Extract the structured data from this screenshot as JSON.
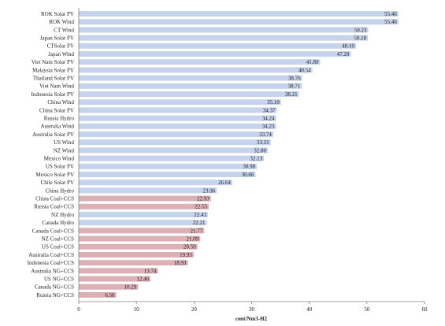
{
  "chart_data": {
    "type": "bar",
    "orientation": "horizontal",
    "title": "",
    "xlabel": "cent/Nm3-H2",
    "ylabel": "",
    "xlim": [
      0,
      60
    ],
    "xticks": [
      0,
      10,
      20,
      30,
      40,
      50,
      60
    ],
    "grid": false,
    "legend": "none",
    "colors": {
      "renewable": "#c5d3ec",
      "fossil": "#dbb1b6",
      "axis": "#808080"
    },
    "categories": [
      "ROK Solar PV",
      "ROK Wind",
      "CT Wind",
      "Japan Solar PV",
      "CTSolar PV",
      "Japan Wind",
      "Viet Nam Solar PV",
      "Malaysia Solar PV",
      "Thailand Solar PV",
      "Viet Nam Wind",
      "Indonesia Solar PV",
      "China Wind",
      "China Solar PV",
      "Russia Hydro",
      "Australia Wind",
      "Australia Solar PV",
      "US Wind",
      "NZ Wind",
      "Mexico Wind",
      "US Solar PV",
      "Mexico Solar PV",
      "Chile Solar PV",
      "China Hydro",
      "China Coal+CCS",
      "Russia Coal+CCS",
      "NZ Hydro",
      "Canada Hydro",
      "Canada Coal+CCS",
      "NZ Coal+CCS",
      "US Coal+CCS",
      "Australia Coal+CCS",
      "Indonesia Coal+CCS",
      "Australia NG+CCS",
      "US NG+CCS",
      "Canada NG+CCS",
      "Russia NG+CCS"
    ],
    "values": [
      55.46,
      55.46,
      50.23,
      50.18,
      48.1,
      47.2,
      41.89,
      40.54,
      38.76,
      38.71,
      38.21,
      35.1,
      34.37,
      34.24,
      34.23,
      33.74,
      33.31,
      32.8,
      32.13,
      30.9,
      30.66,
      26.64,
      23.96,
      22.93,
      22.55,
      22.41,
      22.21,
      21.77,
      21.09,
      20.59,
      19.93,
      18.93,
      13.74,
      12.46,
      10.29,
      6.5
    ],
    "value_labels": [
      "55.46",
      "55.46",
      "50.23",
      "50.18",
      "48.10",
      "47.20",
      "41.89",
      "40.54",
      "38.76",
      "38.71",
      "38.21",
      "35.10",
      "34.37",
      "34.24",
      "34.23",
      "33.74",
      "33.31",
      "32.80",
      "32.13",
      "30.90",
      "30.66",
      "26.64",
      "23.96",
      "22.93",
      "22.55",
      "22.41",
      "22.21",
      "21.77",
      "21.09",
      "20.59",
      "19.93",
      "18.93",
      "13.74",
      "12.46",
      "10.29",
      "6.50"
    ],
    "bar_group": [
      "renewable",
      "renewable",
      "renewable",
      "renewable",
      "renewable",
      "renewable",
      "renewable",
      "renewable",
      "renewable",
      "renewable",
      "renewable",
      "renewable",
      "renewable",
      "renewable",
      "renewable",
      "renewable",
      "renewable",
      "renewable",
      "renewable",
      "renewable",
      "renewable",
      "renewable",
      "renewable",
      "fossil",
      "fossil",
      "renewable",
      "renewable",
      "fossil",
      "fossil",
      "fossil",
      "fossil",
      "fossil",
      "fossil",
      "fossil",
      "fossil",
      "fossil"
    ]
  }
}
